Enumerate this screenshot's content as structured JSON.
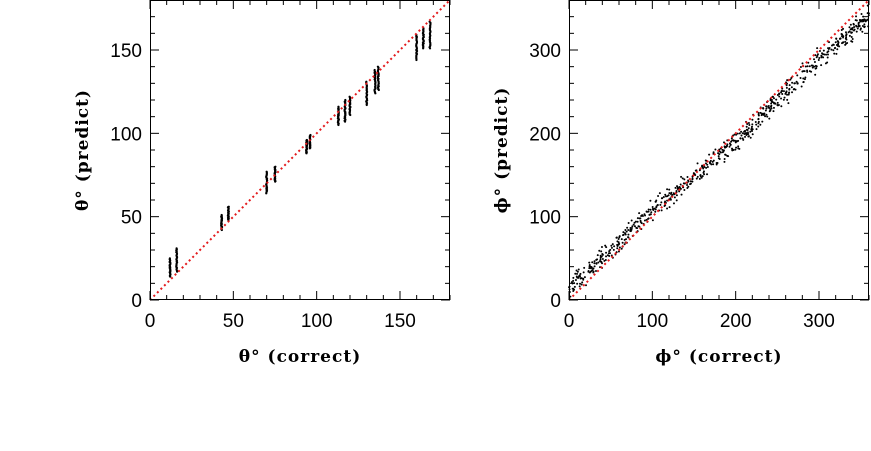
{
  "chart_data": [
    {
      "type": "scatter",
      "xlabel": "θ° (correct)",
      "ylabel": "θ° (predict)",
      "xlim": [
        0,
        180
      ],
      "ylim": [
        0,
        180
      ],
      "xticks": [
        "0",
        "50",
        "100",
        "150"
      ],
      "yticks": [
        "0",
        "50",
        "100",
        "150"
      ],
      "reference_line": {
        "style": "dotted",
        "color": "#e31a1c",
        "x": [
          0,
          180
        ],
        "y": [
          0,
          180
        ]
      },
      "marker_color": "#000000",
      "series": [
        {
          "clusters": [
            {
              "x": 12,
              "y_min": 14,
              "y_max": 25
            },
            {
              "x": 16,
              "y_min": 17,
              "y_max": 31
            },
            {
              "x": 43,
              "y_min": 42,
              "y_max": 51
            },
            {
              "x": 47,
              "y_min": 48,
              "y_max": 56
            },
            {
              "x": 70,
              "y_min": 64,
              "y_max": 77
            },
            {
              "x": 75,
              "y_min": 71,
              "y_max": 80
            },
            {
              "x": 94,
              "y_min": 88,
              "y_max": 96
            },
            {
              "x": 96,
              "y_min": 91,
              "y_max": 99
            },
            {
              "x": 113,
              "y_min": 105,
              "y_max": 116
            },
            {
              "x": 117,
              "y_min": 107,
              "y_max": 120
            },
            {
              "x": 120,
              "y_min": 111,
              "y_max": 122
            },
            {
              "x": 130,
              "y_min": 117,
              "y_max": 131
            },
            {
              "x": 135,
              "y_min": 124,
              "y_max": 138
            },
            {
              "x": 137,
              "y_min": 126,
              "y_max": 140
            },
            {
              "x": 160,
              "y_min": 144,
              "y_max": 159
            },
            {
              "x": 164,
              "y_min": 151,
              "y_max": 163
            },
            {
              "x": 168,
              "y_min": 151,
              "y_max": 167
            }
          ]
        }
      ]
    },
    {
      "type": "scatter",
      "xlabel": "ϕ° (correct)",
      "ylabel": "ϕ° (predict)",
      "xlim": [
        0,
        360
      ],
      "ylim": [
        0,
        360
      ],
      "xticks": [
        "0",
        "100",
        "200",
        "300"
      ],
      "yticks": [
        "0",
        "100",
        "200",
        "300"
      ],
      "reference_line": {
        "style": "dotted",
        "color": "#e31a1c",
        "x": [
          0,
          360
        ],
        "y": [
          0,
          360
        ]
      },
      "marker_color": "#000000",
      "series": [
        {
          "trend": [
            [
              0,
              15
            ],
            [
              50,
              58
            ],
            [
              100,
              107
            ],
            [
              150,
              148
            ],
            [
              200,
              190
            ],
            [
              250,
              240
            ],
            [
              300,
              290
            ],
            [
              360,
              340
            ]
          ],
          "spread": 6,
          "n_points": 720
        }
      ]
    }
  ]
}
